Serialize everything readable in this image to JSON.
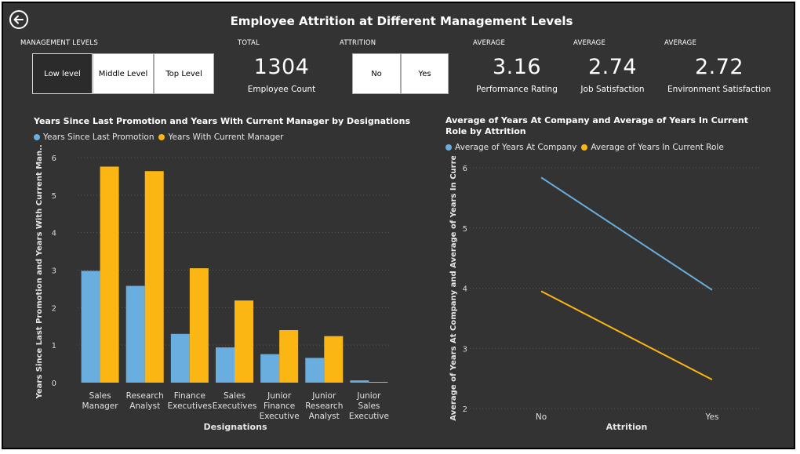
{
  "header": {
    "title": "Employee Attrition at Different Management Levels"
  },
  "filters": {
    "management_label": "MANAGEMENT LEVELS",
    "management_levels": [
      "Low level",
      "Middle Level",
      "Top Level"
    ],
    "management_selected": "Low level",
    "attrition_label": "ATTRITION",
    "attrition_options": [
      "No",
      "Yes"
    ]
  },
  "kpis": [
    {
      "label": "TOTAL",
      "value": "1304",
      "caption": "Employee Count"
    },
    {
      "label": "AVERAGE",
      "value": "3.16",
      "caption": "Performance Rating"
    },
    {
      "label": "AVERAGE",
      "value": "2.74",
      "caption": "Job Satisfaction"
    },
    {
      "label": "AVERAGE",
      "value": "2.72",
      "caption": "Environment Satisfaction"
    }
  ],
  "colors": {
    "background": "#333333",
    "series_blue": "#6aaee0",
    "series_yellow": "#fbb614",
    "grid": "#5a5a5a"
  },
  "chart_data": [
    {
      "type": "bar",
      "title": "Years Since Last Promotion and Years With Current Manager by Designations",
      "xlabel": "Designations",
      "ylabel": "Years Since Last Promotion and Years With Current Man...",
      "categories": [
        "Sales Manager",
        "Research Analyst",
        "Finance Executives",
        "Sales Executives",
        "Junior Finance Executive",
        "Junior Research Analyst",
        "Junior Sales Executive"
      ],
      "category_lines": [
        [
          "Sales",
          "Manager"
        ],
        [
          "Research",
          "Analyst"
        ],
        [
          "Finance",
          "Executives"
        ],
        [
          "Sales",
          "Executives"
        ],
        [
          "Junior",
          "Finance",
          "Executive"
        ],
        [
          "Junior",
          "Research",
          "Analyst"
        ],
        [
          "Junior",
          "Sales",
          "Executive"
        ]
      ],
      "series": [
        {
          "name": "Years Since Last Promotion",
          "values": [
            2.98,
            2.58,
            1.3,
            0.94,
            0.76,
            0.66,
            0.06
          ]
        },
        {
          "name": "Years With Current Manager",
          "values": [
            5.76,
            5.64,
            3.05,
            2.19,
            1.4,
            1.24,
            0.02
          ]
        }
      ],
      "ylim": [
        0,
        6
      ],
      "yticks": [
        "0",
        "1",
        "2",
        "3",
        "4",
        "5",
        "6"
      ],
      "legend": "top-left",
      "grid": true
    },
    {
      "type": "line",
      "title": "Average of Years At Company and Average of Years In Current Role by Attrition",
      "xlabel": "Attrition",
      "ylabel": "Average of Years At Company and Average of Years In Curre...",
      "x": [
        "No",
        "Yes"
      ],
      "series": [
        {
          "name": "Average of Years At Company",
          "values": [
            5.84,
            3.97
          ]
        },
        {
          "name": "Average of Years In Current Role",
          "values": [
            3.95,
            2.48
          ]
        }
      ],
      "ylim": [
        2,
        6
      ],
      "yticks": [
        "2",
        "3",
        "4",
        "5",
        "6"
      ],
      "legend": "top-left",
      "grid": true
    }
  ]
}
